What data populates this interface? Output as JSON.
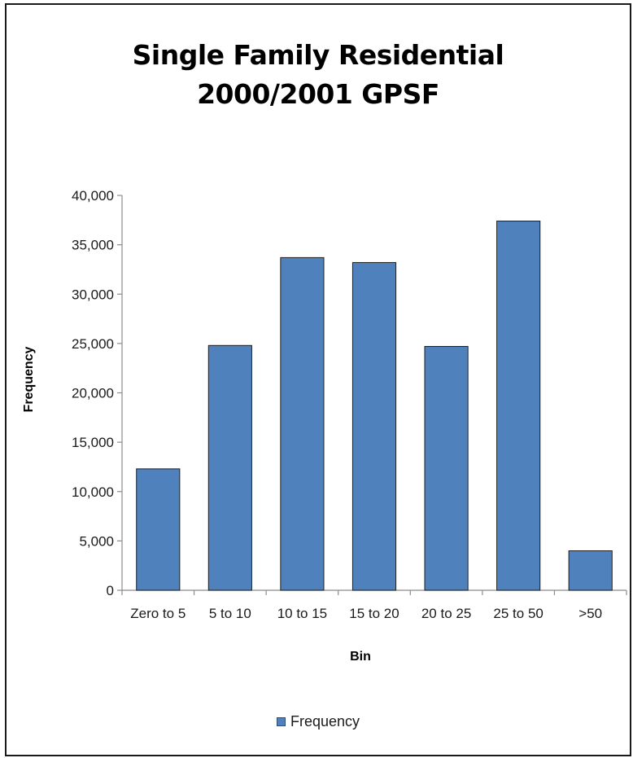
{
  "chart_data": {
    "type": "bar",
    "title_lines": [
      "Single Family Residential",
      "2000/2001 GPSF"
    ],
    "xlabel": "Bin",
    "ylabel": "Frequency",
    "categories": [
      "Zero to 5",
      "5 to 10",
      "10 to 15",
      "15 to 20",
      "20 to 25",
      "25 to 50",
      ">50"
    ],
    "series": [
      {
        "name": "Frequency",
        "values": [
          12300,
          24800,
          33700,
          33200,
          24700,
          37400,
          4000
        ]
      }
    ],
    "ylim": [
      0,
      40000
    ],
    "yticks": [
      0,
      5000,
      10000,
      15000,
      20000,
      25000,
      30000,
      35000,
      40000
    ],
    "ytick_labels": [
      "0",
      "5,000",
      "10,000",
      "15,000",
      "20,000",
      "25,000",
      "30,000",
      "35,000",
      "40,000"
    ],
    "grid": false,
    "legend_position": "bottom",
    "bar_color": "#4f81bd",
    "bar_edge_color": "#1f1f1f"
  }
}
